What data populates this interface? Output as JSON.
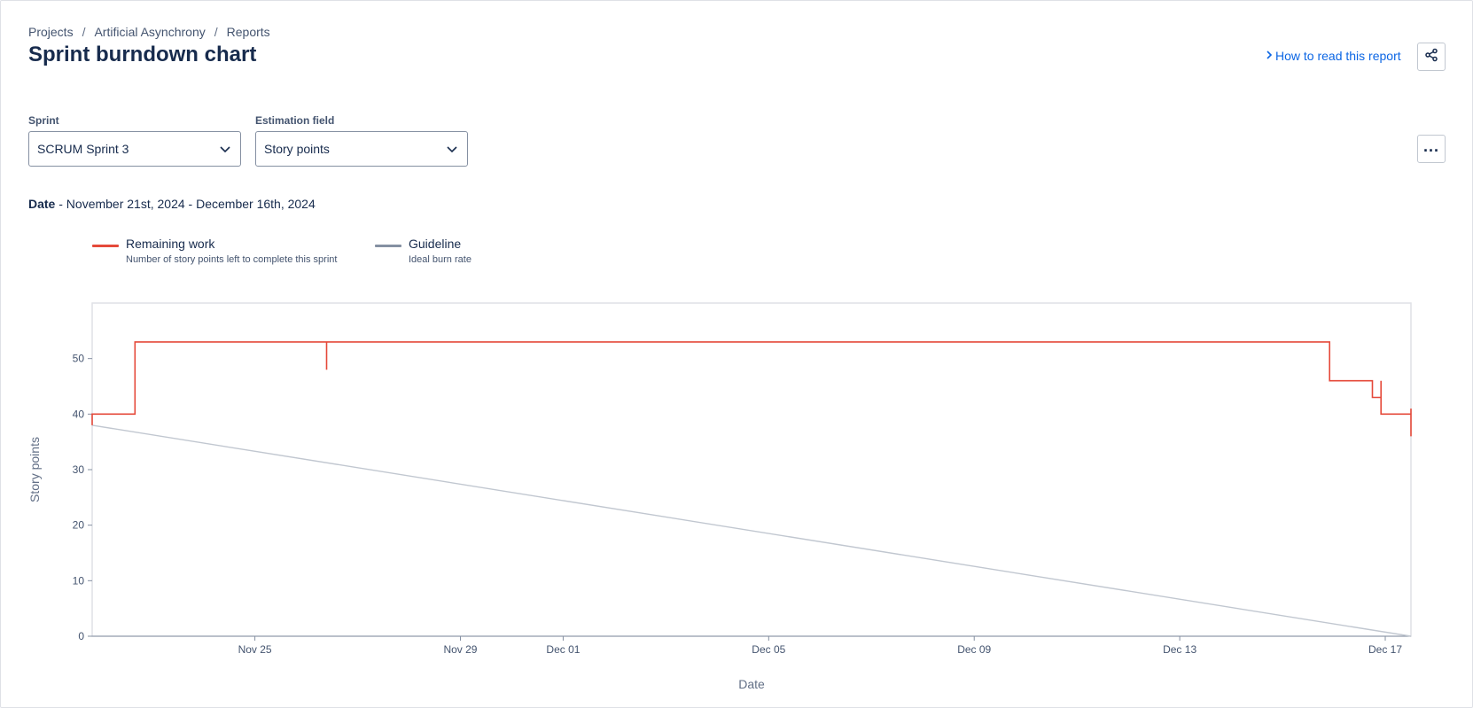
{
  "breadcrumb": {
    "items": [
      "Projects",
      "Artificial Asynchrony",
      "Reports"
    ],
    "separator": "/"
  },
  "page": {
    "title": "Sprint burndown chart",
    "help_link": "How to read this report"
  },
  "filters": {
    "sprint": {
      "label": "Sprint",
      "value": "SCRUM Sprint 3"
    },
    "estimation": {
      "label": "Estimation field",
      "value": "Story points"
    }
  },
  "date_range": {
    "label": "Date",
    "value": "- November 21st, 2024 - December 16th, 2024"
  },
  "legend": [
    {
      "name": "Remaining work",
      "description": "Number of story points left to complete this sprint",
      "color": "#e5493a"
    },
    {
      "name": "Guideline",
      "description": "Ideal burn rate",
      "color": "#8590a2"
    }
  ],
  "icons": {
    "share": "share-icon",
    "more": "more-icon",
    "dropdown": "chevron-down-icon",
    "help": "chevron-right-icon"
  },
  "chart_data": {
    "type": "line",
    "xlabel": "Date",
    "ylabel": "Story points",
    "ylim": [
      0,
      60
    ],
    "y_ticks": [
      0,
      10,
      20,
      30,
      40,
      50
    ],
    "x_range": [
      "2024-11-21 20:00",
      "2024-12-17 12:00"
    ],
    "x_ticks": [
      {
        "date": "2024-11-25",
        "label": "Nov 25"
      },
      {
        "date": "2024-11-29",
        "label": "Nov 29"
      },
      {
        "date": "2024-12-01",
        "label": "Dec 01"
      },
      {
        "date": "2024-12-05",
        "label": "Dec 05"
      },
      {
        "date": "2024-12-09",
        "label": "Dec 09"
      },
      {
        "date": "2024-12-13",
        "label": "Dec 13"
      },
      {
        "date": "2024-12-17",
        "label": "Dec 17"
      }
    ],
    "grid": false,
    "series": [
      {
        "name": "Remaining work",
        "color": "#e5493a",
        "step": true,
        "points": [
          [
            "2024-11-21 20:00",
            38
          ],
          [
            "2024-11-21 20:00",
            40
          ],
          [
            "2024-11-22 16:00",
            40
          ],
          [
            "2024-11-22 16:00",
            53
          ],
          [
            "2024-11-26 09:30",
            53
          ],
          [
            "2024-11-26 09:30",
            48
          ],
          [
            "2024-11-26 09:30",
            53
          ],
          [
            "2024-12-15 22:00",
            53
          ],
          [
            "2024-12-15 22:00",
            46
          ],
          [
            "2024-12-16 18:00",
            46
          ],
          [
            "2024-12-16 18:00",
            43
          ],
          [
            "2024-12-16 22:00",
            43
          ],
          [
            "2024-12-16 22:00",
            46
          ],
          [
            "2024-12-16 22:00",
            40
          ],
          [
            "2024-12-17 12:00",
            40
          ],
          [
            "2024-12-17 12:00",
            36
          ],
          [
            "2024-12-17 12:00",
            41
          ]
        ]
      },
      {
        "name": "Guideline",
        "color": "#c1c7d0",
        "points": [
          [
            "2024-11-21 20:00",
            38
          ],
          [
            "2024-12-17 12:00",
            0
          ]
        ]
      }
    ]
  }
}
